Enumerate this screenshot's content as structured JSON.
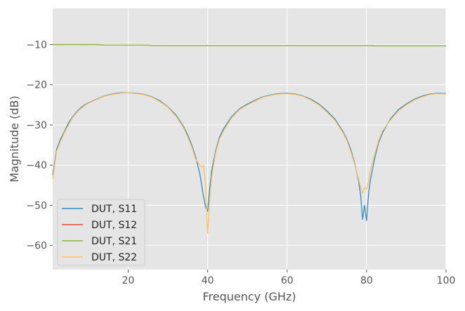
{
  "chart_data": {
    "type": "line",
    "title": "",
    "xlabel": "Frequency (GHz)",
    "ylabel": "Magnitude (dB)",
    "xlim": [
      1,
      100
    ],
    "ylim": [
      -66,
      -1
    ],
    "xticks": [
      20,
      40,
      60,
      80,
      100
    ],
    "yticks": [
      -60,
      -50,
      -40,
      -30,
      -20,
      -10
    ],
    "xtick_labels": [
      "20",
      "40",
      "60",
      "80",
      "100"
    ],
    "ytick_labels": [
      "−60",
      "−50",
      "−40",
      "−30",
      "−20",
      "−10"
    ],
    "grid": true,
    "legend_position": "lower-left",
    "x": [
      1,
      2,
      3,
      4,
      5,
      6,
      7,
      8,
      9,
      10,
      12,
      14,
      16,
      18,
      20,
      22,
      24,
      26,
      28,
      30,
      32,
      34,
      35,
      36,
      37,
      38,
      38.5,
      39,
      39.5,
      40,
      40.5,
      41,
      42,
      43,
      44,
      46,
      48,
      50,
      52,
      54,
      56,
      58,
      60,
      62,
      64,
      66,
      68,
      70,
      72,
      74,
      75,
      76,
      77,
      78,
      78.5,
      79,
      79.5,
      80,
      80.5,
      81,
      82,
      83,
      84,
      86,
      88,
      90,
      92,
      94,
      96,
      98,
      100
    ],
    "series": [
      {
        "name": "DUT, S11",
        "color": "#348ABD",
        "values": [
          -42.5,
          -36,
          -33.5,
          -31.5,
          -29.5,
          -28,
          -26.8,
          -25.8,
          -25,
          -24.5,
          -23.6,
          -22.8,
          -22.3,
          -22,
          -22,
          -22.1,
          -22.4,
          -23,
          -24,
          -25.5,
          -27.5,
          -30.5,
          -32.5,
          -35,
          -38,
          -42,
          -45,
          -48,
          -50.5,
          -51.5,
          -46,
          -41.5,
          -36.5,
          -33,
          -31,
          -28,
          -26,
          -24.8,
          -23.8,
          -23,
          -22.5,
          -22.2,
          -22.1,
          -22.3,
          -22.8,
          -23.6,
          -24.8,
          -26.5,
          -28.5,
          -31.5,
          -33.5,
          -36,
          -39.5,
          -44,
          -47.5,
          -53.5,
          -50,
          -53.8,
          -47,
          -43.5,
          -38.5,
          -34.5,
          -32,
          -28.5,
          -26.2,
          -24.8,
          -23.6,
          -22.8,
          -22.3,
          -22.1,
          -22.2
        ]
      },
      {
        "name": "DUT, S12",
        "color": "#E24A33",
        "values": [
          -10,
          -10,
          -10,
          -10,
          -10,
          -10,
          -10,
          -10,
          -10,
          -10,
          -10,
          -10.1,
          -10.1,
          -10.1,
          -10.1,
          -10.1,
          -10.1,
          -10.2,
          -10.2,
          -10.2,
          -10.2,
          -10.2,
          -10.2,
          -10.2,
          -10.2,
          -10.2,
          -10.2,
          -10.2,
          -10.2,
          -10.2,
          -10.2,
          -10.2,
          -10.2,
          -10.2,
          -10.2,
          -10.2,
          -10.2,
          -10.2,
          -10.2,
          -10.2,
          -10.2,
          -10.2,
          -10.2,
          -10.2,
          -10.2,
          -10.2,
          -10.2,
          -10.2,
          -10.2,
          -10.2,
          -10.2,
          -10.2,
          -10.2,
          -10.2,
          -10.2,
          -10.2,
          -10.2,
          -10.2,
          -10.2,
          -10.2,
          -10.3,
          -10.3,
          -10.3,
          -10.3,
          -10.3,
          -10.3,
          -10.3,
          -10.3,
          -10.3,
          -10.3,
          -10.3
        ]
      },
      {
        "name": "DUT, S21",
        "color": "#8EBA42",
        "values": [
          -10,
          -10,
          -10,
          -10,
          -10,
          -10,
          -10,
          -10,
          -10,
          -10,
          -10,
          -10.1,
          -10.1,
          -10.1,
          -10.1,
          -10.1,
          -10.1,
          -10.2,
          -10.2,
          -10.2,
          -10.2,
          -10.2,
          -10.2,
          -10.2,
          -10.2,
          -10.2,
          -10.2,
          -10.2,
          -10.2,
          -10.2,
          -10.2,
          -10.2,
          -10.2,
          -10.2,
          -10.2,
          -10.2,
          -10.2,
          -10.2,
          -10.2,
          -10.2,
          -10.2,
          -10.2,
          -10.2,
          -10.2,
          -10.2,
          -10.2,
          -10.2,
          -10.2,
          -10.2,
          -10.2,
          -10.2,
          -10.2,
          -10.2,
          -10.2,
          -10.2,
          -10.2,
          -10.2,
          -10.2,
          -10.2,
          -10.2,
          -10.3,
          -10.3,
          -10.3,
          -10.3,
          -10.3,
          -10.3,
          -10.3,
          -10.3,
          -10.3,
          -10.3,
          -10.3
        ]
      },
      {
        "name": "DUT, S22",
        "color": "#FBC15E",
        "values": [
          -43.5,
          -36.5,
          -34,
          -31.8,
          -30,
          -28.2,
          -27,
          -26,
          -25.2,
          -24.6,
          -23.7,
          -22.9,
          -22.4,
          -22.1,
          -22,
          -22.2,
          -22.5,
          -23.1,
          -24.2,
          -25.6,
          -27.8,
          -30.8,
          -33,
          -35.5,
          -38.5,
          -40,
          -40.5,
          -40,
          -45,
          -57,
          -49,
          -43,
          -37,
          -33.5,
          -31.5,
          -28.3,
          -26.2,
          -25,
          -24,
          -23.1,
          -22.6,
          -22.3,
          -22.2,
          -22.4,
          -22.9,
          -23.8,
          -25,
          -26.8,
          -28.8,
          -31.8,
          -33.8,
          -36.5,
          -39.8,
          -43.5,
          -45.5,
          -47,
          -45.5,
          -46,
          -44,
          -41,
          -37.5,
          -34,
          -31.5,
          -28.8,
          -26.5,
          -25,
          -23.8,
          -23,
          -22.4,
          -22.2,
          -22.3
        ]
      }
    ]
  }
}
